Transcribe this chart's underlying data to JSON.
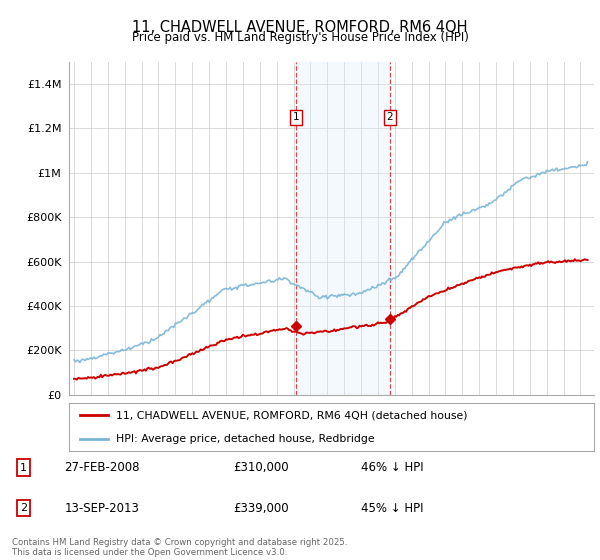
{
  "title": "11, CHADWELL AVENUE, ROMFORD, RM6 4QH",
  "subtitle": "Price paid vs. HM Land Registry's House Price Index (HPI)",
  "sale1_date": 2008.15,
  "sale1_price": 310000,
  "sale2_date": 2013.71,
  "sale2_price": 339000,
  "hpi_color": "#7ab5d8",
  "price_color": "#cc0000",
  "shade_color": "#ddeeff",
  "legend_line1": "11, CHADWELL AVENUE, ROMFORD, RM6 4QH (detached house)",
  "legend_line2": "HPI: Average price, detached house, Redbridge",
  "footer": "Contains HM Land Registry data © Crown copyright and database right 2025.\nThis data is licensed under the Open Government Licence v3.0.",
  "ylim_max": 1500000,
  "yticks": [
    0,
    200000,
    400000,
    600000,
    800000,
    1000000,
    1200000,
    1400000
  ],
  "xlim_start": 1994.7,
  "xlim_end": 2025.8
}
